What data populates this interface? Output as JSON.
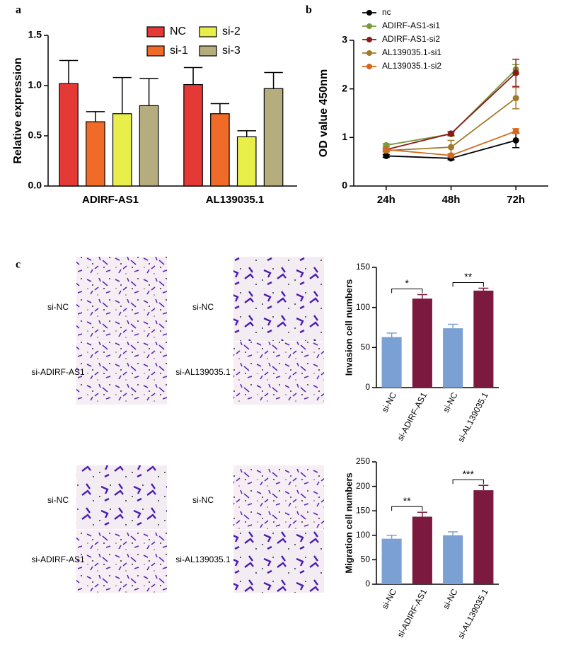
{
  "chart_data": [
    {
      "type": "bar",
      "panel_label": "a",
      "ylabel": "Relative expression",
      "categories": [
        "ADIRF-AS1",
        "AL139035.1"
      ],
      "series": [
        {
          "name": "NC",
          "color": "#e53935",
          "values": [
            1.02,
            1.01
          ],
          "errors": [
            0.23,
            0.17
          ]
        },
        {
          "name": "si-1",
          "color": "#f06a28",
          "values": [
            0.64,
            0.72
          ],
          "errors": [
            0.1,
            0.1
          ]
        },
        {
          "name": "si-2",
          "color": "#e8ef4a",
          "values": [
            0.72,
            0.49
          ],
          "errors": [
            0.36,
            0.06
          ]
        },
        {
          "name": "si-3",
          "color": "#b5ad7d",
          "values": [
            0.8,
            0.97
          ],
          "errors": [
            0.27,
            0.16
          ]
        }
      ],
      "ylim": [
        0,
        1.5
      ],
      "yticks": [
        {
          "value": 0,
          "label": "0.0"
        },
        0.5,
        {
          "value": 1,
          "label": "1.0"
        },
        1.5
      ]
    },
    {
      "type": "line",
      "panel_label": "b",
      "ylabel": "OD value  450nm",
      "categories": [
        "24h",
        "48h",
        "72h"
      ],
      "series": [
        {
          "name": "nc",
          "color": "#000000",
          "values": [
            0.62,
            0.57,
            0.94
          ],
          "errors": [
            0.03,
            0.03,
            0.15
          ]
        },
        {
          "name": "ADIRF-AS1-si1",
          "color": "#7a9a3a",
          "values": [
            0.84,
            1.07,
            2.4
          ],
          "errors": [
            0.03,
            0.04,
            0.1
          ]
        },
        {
          "name": "ADIRF-AS1-si2",
          "color": "#8b1a1a",
          "values": [
            0.75,
            1.08,
            2.33
          ],
          "errors": [
            0.03,
            0.04,
            0.28
          ]
        },
        {
          "name": "AL139035.1-si1",
          "color": "#a07a2a",
          "values": [
            0.73,
            0.8,
            1.81
          ],
          "errors": [
            0.03,
            0.14,
            0.22
          ]
        },
        {
          "name": "AL139035.1-si2",
          "color": "#d2691e",
          "values": [
            0.75,
            0.63,
            1.13
          ],
          "errors": [
            0.03,
            0.03,
            0.05
          ]
        }
      ],
      "ylim": [
        0,
        3
      ],
      "yticks": [
        0,
        1,
        2,
        3
      ]
    },
    {
      "type": "bar",
      "panel_label": "c",
      "ylabel": "Invasion cell numbers",
      "categories": [
        "si-NC",
        "si-ADIRF-AS1",
        "si-NC",
        "si-AL139035.1"
      ],
      "values": [
        63,
        111,
        74,
        121
      ],
      "errors": [
        5,
        5,
        5,
        3
      ],
      "colors": [
        "#7aa0d4",
        "#7b1a3e",
        "#7aa0d4",
        "#7b1a3e"
      ],
      "annotations": [
        "*",
        "**"
      ],
      "ylim": [
        0,
        150
      ],
      "yticks": [
        0,
        50,
        100,
        150
      ]
    },
    {
      "type": "bar",
      "ylabel": "Migration cell numbers",
      "categories": [
        "si-NC",
        "si-ADIRF-AS1",
        "si-NC",
        "si-AL139035.1"
      ],
      "values": [
        93,
        138,
        100,
        192
      ],
      "errors": [
        7,
        9,
        7,
        10
      ],
      "colors": [
        "#7aa0d4",
        "#7b1a3e",
        "#7aa0d4",
        "#7b1a3e"
      ],
      "annotations": [
        "**",
        "***"
      ],
      "ylim": [
        0,
        250
      ],
      "yticks": [
        0,
        50,
        100,
        150,
        200,
        250
      ]
    }
  ],
  "micrograph_labels": [
    [
      "si-NC",
      "si-ADIRF-AS1"
    ],
    [
      "si-NC",
      "si-AL139035.1"
    ],
    [
      "si-NC",
      "si-ADIRF-AS1"
    ],
    [
      "si-NC",
      "si-AL139035.1"
    ]
  ]
}
